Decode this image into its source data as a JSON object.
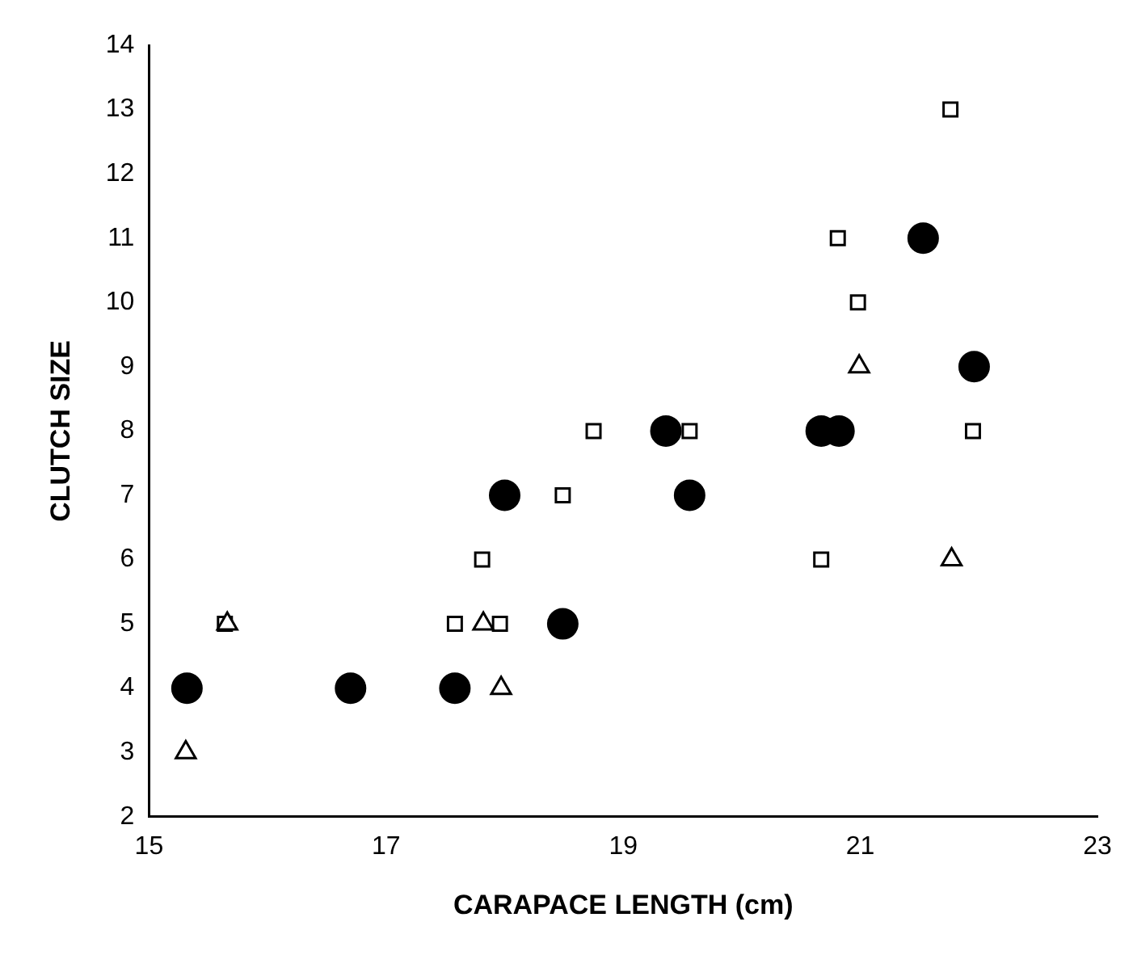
{
  "chart_data": {
    "type": "scatter",
    "xlabel": "CARAPACE LENGTH (cm)",
    "ylabel": "CLUTCH SIZE",
    "xlim": [
      15,
      23
    ],
    "xticks": [
      15,
      17,
      19,
      21,
      23
    ],
    "ylim": [
      2,
      14
    ],
    "yticks": [
      2,
      3,
      4,
      5,
      6,
      7,
      8,
      9,
      10,
      11,
      12,
      13,
      14
    ],
    "grid": false,
    "legend": false,
    "series": [
      {
        "color": "#000000",
        "marker": "circle",
        "x": [
          15.32,
          16.7,
          17.58,
          18.0,
          18.49,
          19.36,
          19.56,
          20.67,
          20.82,
          21.53,
          21.96
        ],
        "values": [
          4,
          4,
          4,
          7,
          5,
          8,
          7,
          8,
          8,
          11,
          9
        ]
      },
      {
        "color": "#000000",
        "marker": "square",
        "x": [
          15.64,
          17.58,
          17.81,
          17.96,
          18.49,
          18.75,
          19.56,
          20.67,
          20.81,
          20.98,
          21.76,
          21.95
        ],
        "values": [
          5,
          5,
          6,
          5,
          7,
          8,
          8,
          6,
          11,
          10,
          13,
          8
        ]
      },
      {
        "color": "#000000",
        "marker": "triangle",
        "x": [
          15.31,
          15.66,
          17.82,
          17.97,
          20.99,
          21.77
        ],
        "values": [
          3,
          5,
          5,
          4,
          9,
          6
        ]
      }
    ]
  }
}
